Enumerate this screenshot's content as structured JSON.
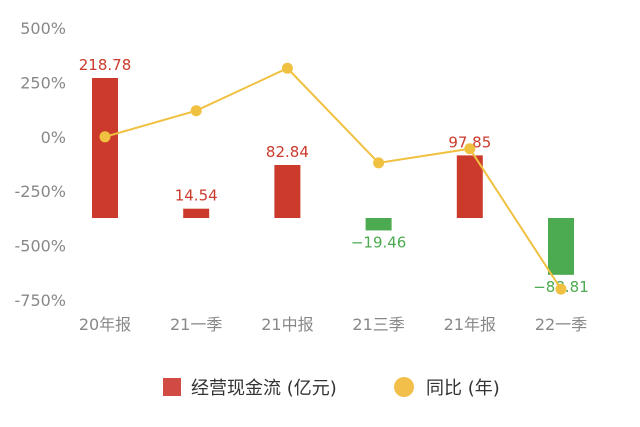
{
  "chart_data": {
    "type": "bar",
    "categories": [
      "20年报",
      "21一季",
      "21中报",
      "21三季",
      "21年报",
      "22一季"
    ],
    "series": [
      {
        "name": "经营现金流 (亿元)",
        "type": "bar",
        "values": [
          218.78,
          14.54,
          82.84,
          -19.46,
          97.85,
          -88.81
        ],
        "labels": [
          "218.78",
          "14.54",
          "82.84",
          "−19.46",
          "97.85",
          "−88.81"
        ],
        "color_positive": "#cc3a2c",
        "color_negative": "#4caa50"
      },
      {
        "name": "同比 (年)",
        "type": "line",
        "values": [
          0,
          120,
          315,
          -120,
          -55,
          -700
        ],
        "color": "#f0c040"
      }
    ],
    "y_axis": {
      "ticks": [
        500,
        250,
        0,
        -250,
        -500,
        -750
      ],
      "tick_labels": [
        "500%",
        "250%",
        "0%",
        "-250%",
        "-500%",
        "-750%"
      ],
      "range": [
        -750,
        500
      ]
    },
    "bar_value_range": [
      -100,
      250
    ],
    "grid": false,
    "legend_position": "bottom"
  }
}
